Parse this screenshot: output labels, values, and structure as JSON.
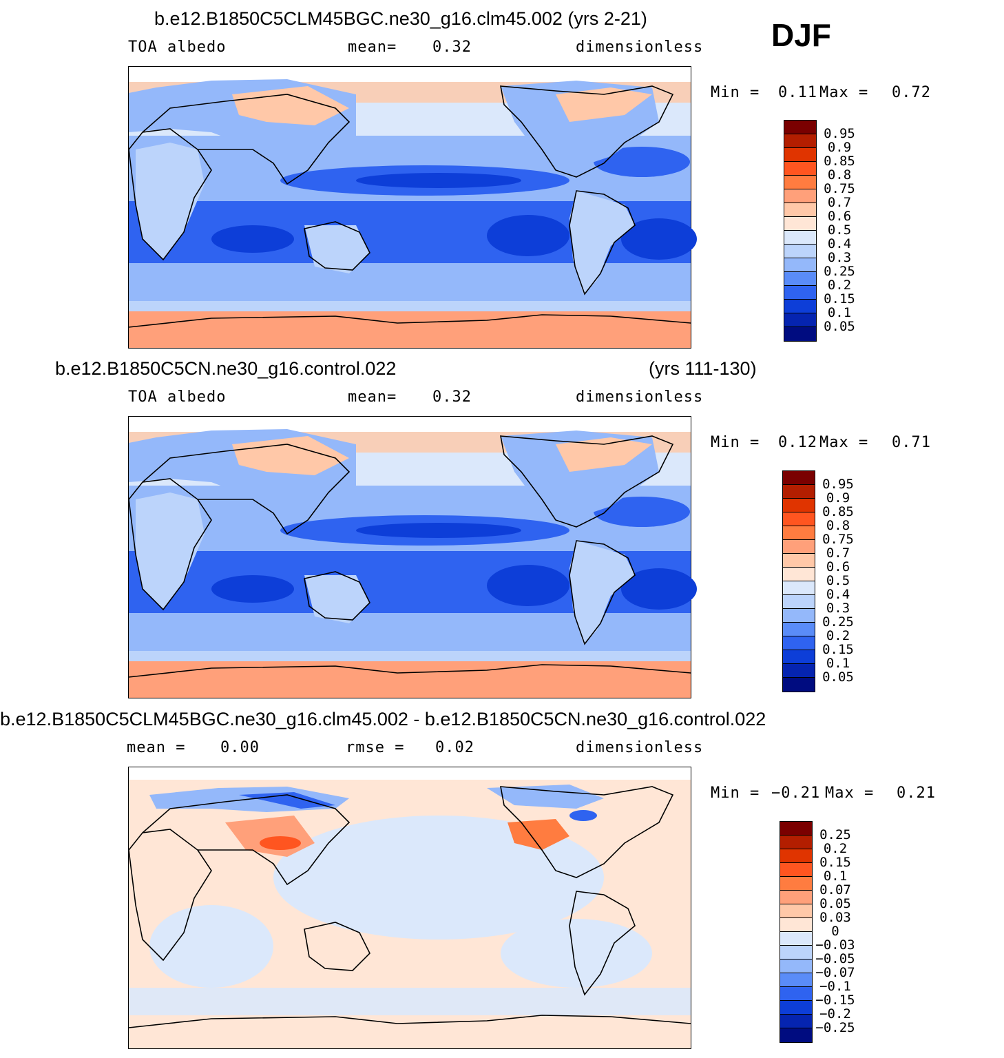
{
  "season": "DJF",
  "panels": [
    {
      "title": "b.e12.B1850C5CLM45BGC.ne30_g16.clm45.002 (yrs 2-21)",
      "title_right": "",
      "left_label": "TOA  albedo",
      "mid_label": "mean=",
      "mid_value": "0.32",
      "units": "dimensionless",
      "min_label": "Min  =",
      "min_value": "0.11",
      "max_label": "Max  =",
      "max_value": "0.72",
      "legend_levels": [
        "0.95",
        "0.9",
        "0.85",
        "0.8",
        "0.75",
        "0.7",
        "0.6",
        "0.5",
        "0.4",
        "0.3",
        "0.25",
        "0.2",
        "0.15",
        "0.1",
        "0.05"
      ],
      "legend_colors": [
        "#7a0000",
        "#b31e00",
        "#e03400",
        "#ff5520",
        "#ff7c40",
        "#ffa07a",
        "#ffc8a8",
        "#ffe6d6",
        "#dbe8fb",
        "#bcd4fb",
        "#94b8fa",
        "#5a8cf8",
        "#2f63f0",
        "#0d3ed8",
        "#0524b0",
        "#000c80"
      ]
    },
    {
      "title": "b.e12.B1850C5CN.ne30_g16.control.022",
      "title_right": "(yrs 111-130)",
      "left_label": "TOA  albedo",
      "mid_label": "mean=",
      "mid_value": "0.32",
      "units": "dimensionless",
      "min_label": "Min  =",
      "min_value": "0.12",
      "max_label": "Max  =",
      "max_value": "0.71",
      "legend_levels": [
        "0.95",
        "0.9",
        "0.85",
        "0.8",
        "0.75",
        "0.7",
        "0.6",
        "0.5",
        "0.4",
        "0.3",
        "0.25",
        "0.2",
        "0.15",
        "0.1",
        "0.05"
      ],
      "legend_colors": [
        "#7a0000",
        "#b31e00",
        "#e03400",
        "#ff5520",
        "#ff7c40",
        "#ffa07a",
        "#ffc8a8",
        "#ffe6d6",
        "#dbe8fb",
        "#bcd4fb",
        "#94b8fa",
        "#5a8cf8",
        "#2f63f0",
        "#0d3ed8",
        "#0524b0",
        "#000c80"
      ]
    },
    {
      "title": "b.e12.B1850C5CLM45BGC.ne30_g16.clm45.002 - b.e12.B1850C5CN.ne30_g16.control.022",
      "title_right": "",
      "left_label": "mean  =",
      "left_value": "0.00",
      "mid_label": "rmse  =",
      "mid_value": "0.02",
      "units": "dimensionless",
      "min_label": "Min  =",
      "min_value": "−0.21",
      "max_label": "Max  =",
      "max_value": "0.21",
      "legend_levels": [
        "0.25",
        "0.2",
        "0.15",
        "0.1",
        "0.07",
        "0.05",
        "0.03",
        "0",
        "−0.03",
        "−0.05",
        "−0.07",
        "−0.1",
        "−0.15",
        "−0.2",
        "−0.25"
      ],
      "legend_colors": [
        "#7a0000",
        "#b31e00",
        "#e03400",
        "#ff5520",
        "#ff7c40",
        "#ffa07a",
        "#ffc8a8",
        "#ffe6d6",
        "#dbe8fb",
        "#bcd4fb",
        "#94b8fa",
        "#5a8cf8",
        "#2f63f0",
        "#0d3ed8",
        "#0524b0",
        "#000c80"
      ]
    }
  ]
}
